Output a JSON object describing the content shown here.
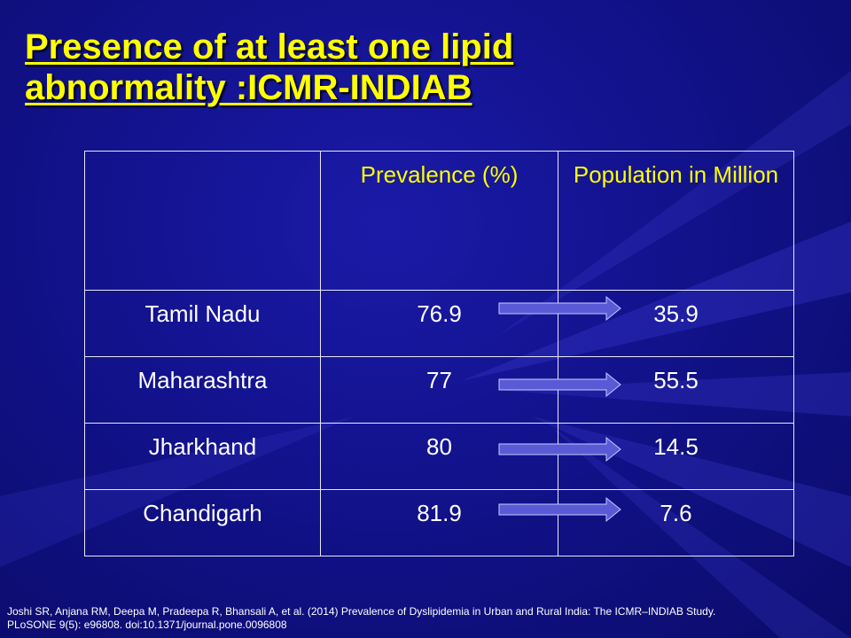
{
  "slide": {
    "title_line1": "Presence of at least one lipid",
    "title_line2": "abnormality :ICMR-INDIAB"
  },
  "table": {
    "headers": [
      "",
      "Prevalence (%)",
      "Population in Million"
    ],
    "rows": [
      {
        "region": "Tamil Nadu",
        "prevalence": "76.9",
        "population": "35.9"
      },
      {
        "region": "Maharashtra",
        "prevalence": "77",
        "population": "55.5"
      },
      {
        "region": "Jharkhand",
        "prevalence": "80",
        "population": "14.5"
      },
      {
        "region": "Chandigarh",
        "prevalence": "81.9",
        "population": "7.6"
      }
    ]
  },
  "arrow_color": "#5a5ad6",
  "citation": {
    "line1": "Joshi SR, Anjana RM, Deepa M, Pradeepa R, Bhansali A, et al. (2014) Prevalence of Dyslipidemia in Urban and Rural India: The ICMR–INDIAB Study.",
    "line2": "PLoSONE 9(5): e96808. doi:10.1371/journal.pone.0096808"
  }
}
